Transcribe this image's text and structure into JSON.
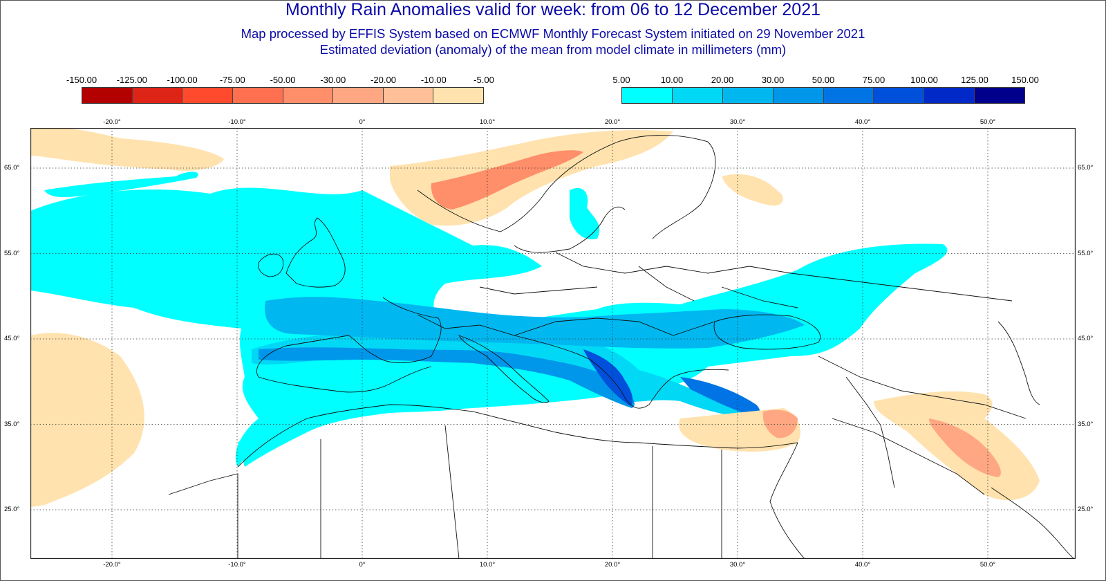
{
  "header": {
    "title": "Monthly Rain Anomalies valid for week: from 06 to 12 December 2021",
    "subtitle1": "Map processed by EFFIS System based on ECMWF Monthly Forecast System initiated on 29 November 2021",
    "subtitle2": "Estimated deviation (anomaly) of the mean from model climate in millimeters (mm)"
  },
  "legend_negative": {
    "labels": [
      "-150.00",
      "-125.00",
      "-100.00",
      "-75.00",
      "-50.00",
      "-30.00",
      "-20.00",
      "-10.00",
      "-5.00"
    ],
    "colors": [
      "#b30000",
      "#de2317",
      "#ff4a2e",
      "#ff7050",
      "#ff8e6a",
      "#ffa683",
      "#ffbf98",
      "#ffe2ae"
    ]
  },
  "legend_positive": {
    "labels": [
      "5.00",
      "10.00",
      "20.00",
      "30.00",
      "50.00",
      "75.00",
      "100.00",
      "125.00",
      "150.00"
    ],
    "colors": [
      "#00ffff",
      "#00d8f6",
      "#00b7f0",
      "#0097ea",
      "#0074e4",
      "#0050dc",
      "#0029c8",
      "#00008c"
    ]
  },
  "map": {
    "lon_labels_top": [
      "-20.0°",
      "-10.0°",
      "0°",
      "10.0°",
      "20.0°",
      "30.0°",
      "40.0°",
      "50.0°"
    ],
    "lon_labels_bottom": [
      "-20.0°",
      "-10.0°",
      "0°",
      "10.0°",
      "20.0°",
      "30.0°",
      "40.0°",
      "50.0°"
    ],
    "lat_labels": [
      "65.0°",
      "55.0°",
      "45.0°",
      "35.0°",
      "25.0°"
    ],
    "lon_values": [
      -20,
      -10,
      0,
      10,
      20,
      30,
      40,
      50
    ],
    "lat_values": [
      65,
      55,
      45,
      35,
      25
    ]
  }
}
